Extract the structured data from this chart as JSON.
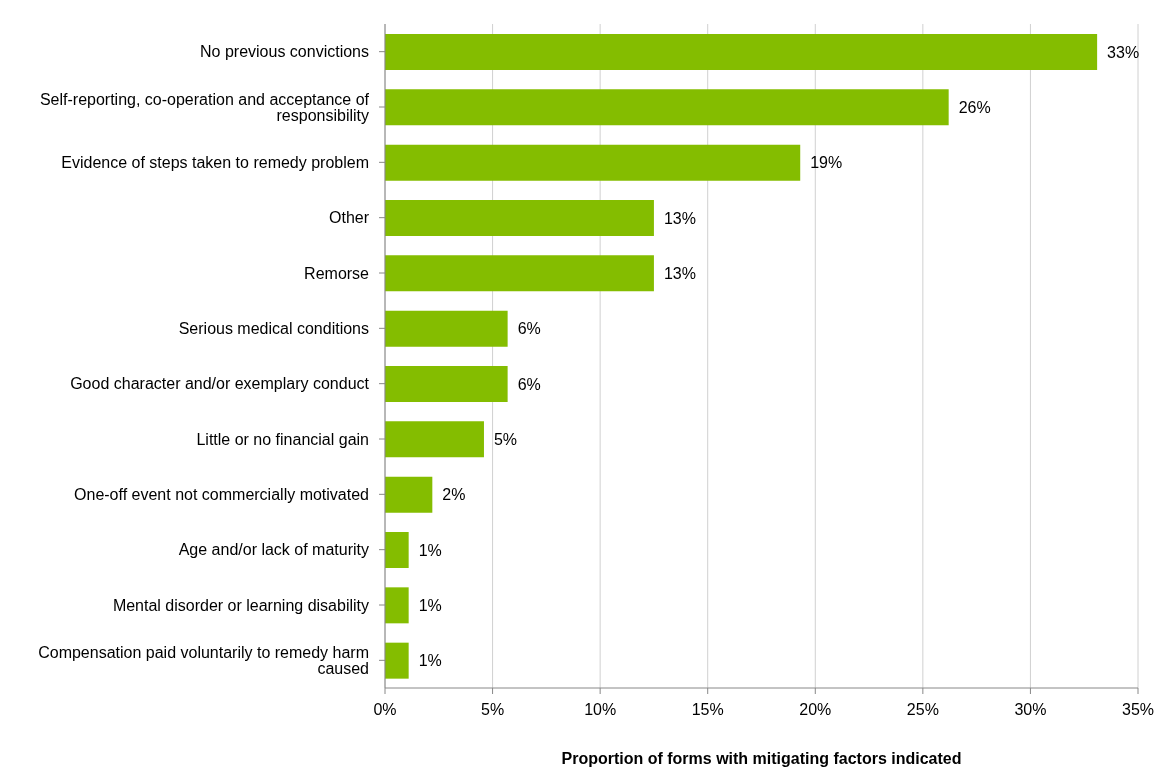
{
  "chart_data": {
    "type": "bar",
    "orientation": "horizontal",
    "xlabel": "Proportion of forms with mitigating factors indicated",
    "categories": [
      "No previous convictions",
      "Self-reporting, co-operation and acceptance of responsibility",
      "Evidence of steps taken to remedy problem",
      "Other",
      "Remorse",
      "Serious medical conditions",
      "Good character and/or exemplary conduct",
      "Little or no financial gain",
      "One-off event not commercially motivated",
      "Age and/or lack of maturity",
      "Mental disorder or learning disability",
      "Compensation paid voluntarily to remedy harm caused"
    ],
    "values": [
      33.1,
      26.2,
      19.3,
      12.5,
      12.5,
      5.7,
      5.7,
      4.6,
      2.2,
      1.1,
      1.1,
      1.1
    ],
    "value_labels": [
      "33%",
      "26%",
      "19%",
      "13%",
      "13%",
      "6%",
      "6%",
      "5%",
      "2%",
      "1%",
      "1%",
      "1%"
    ],
    "color": "#84bd00",
    "xlim": [
      0,
      35
    ],
    "xticks": [
      {
        "value": 0,
        "label": "0%"
      },
      {
        "value": 5,
        "label": "5%"
      },
      {
        "value": 10,
        "label": "10%"
      },
      {
        "value": 15,
        "label": "15%"
      },
      {
        "value": 20,
        "label": "20%"
      },
      {
        "value": 25,
        "label": "25%"
      },
      {
        "value": 30,
        "label": "30%"
      },
      {
        "value": 35,
        "label": "35%"
      }
    ],
    "grid": "x"
  }
}
